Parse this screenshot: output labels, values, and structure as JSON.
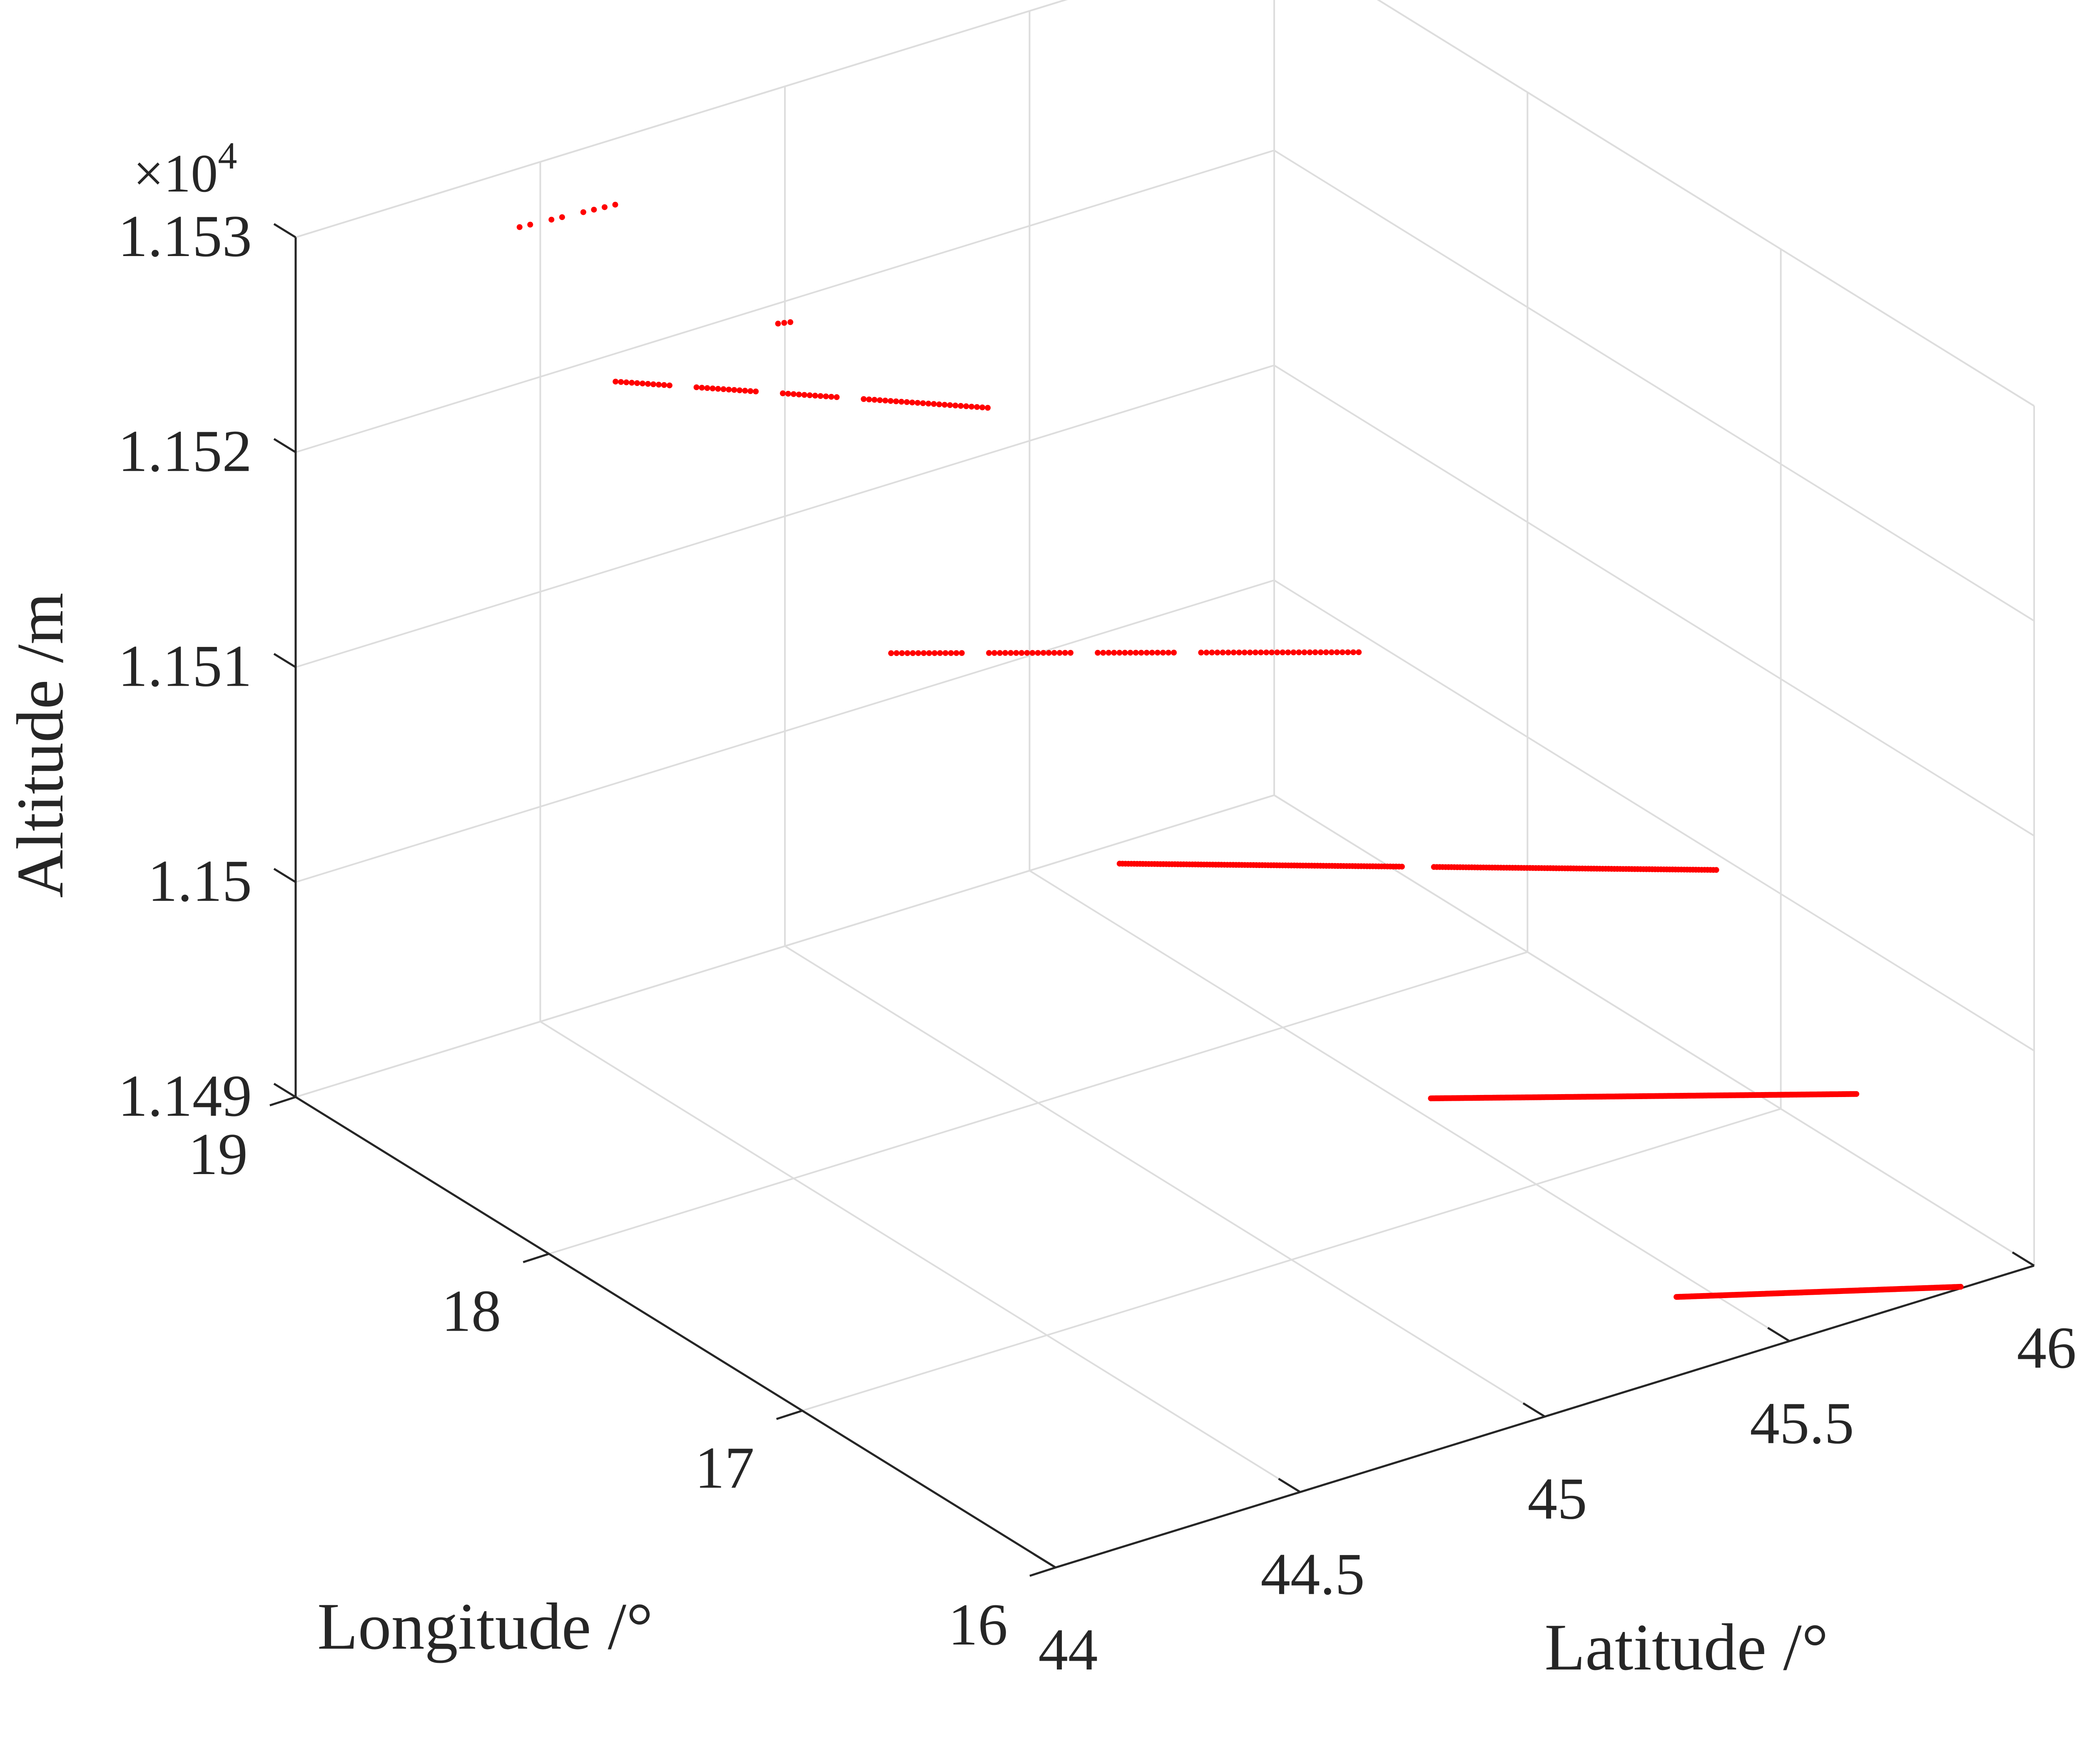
{
  "chart_data": {
    "type": "scatter",
    "view": "3d",
    "x_axis": {
      "label": "Latitude /°",
      "range": [
        44,
        46
      ],
      "ticks": [
        44,
        44.5,
        45,
        45.5,
        46
      ],
      "tick_labels": [
        "44",
        "44.5",
        "45",
        "45.5",
        "46"
      ]
    },
    "y_axis": {
      "label": "Longitude /°",
      "range": [
        16,
        19
      ],
      "ticks": [
        16,
        17,
        18,
        19
      ],
      "tick_labels": [
        "16",
        "17",
        "18",
        "19"
      ]
    },
    "z_axis": {
      "label": "Altitude /m",
      "range": [
        1.149,
        1.153
      ],
      "ticks": [
        1.149,
        1.15,
        1.151,
        1.152,
        1.153
      ],
      "tick_labels": [
        "1.149",
        "1.15",
        "1.151",
        "1.152",
        "1.153"
      ],
      "exponent_prefix": "×10",
      "exponent_power": "4"
    },
    "grid": true,
    "marker_color": "#ff0000",
    "series": [
      {
        "segments": [
          {
            "start": [
              44.38,
              18.85,
              1.15289
            ],
            "end": [
              44.56,
              18.82,
              1.15289
            ],
            "style": "sparse"
          },
          {
            "start": [
              44.52,
              18.1,
              1.15289
            ],
            "end": [
              44.54,
              18.09,
              1.15289
            ],
            "style": "sparse"
          },
          {
            "start": [
              44.54,
              18.78,
              1.15211
            ],
            "end": [
              44.99,
              18.18,
              1.15211
            ],
            "style": "dotted"
          },
          {
            "start": [
              44.72,
              18.04,
              1.15126
            ],
            "end": [
              45.36,
              17.43,
              1.15126
            ],
            "style": "dotted"
          },
          {
            "start": [
              44.98,
              17.64,
              1.15039
            ],
            "end": [
              45.78,
              16.83,
              1.15039
            ],
            "style": "dense"
          },
          {
            "start": [
              45.29,
              17.01,
              1.14954
            ],
            "end": [
              45.88,
              16.47,
              1.14954
            ],
            "style": "solid"
          },
          {
            "start": [
              45.59,
              16.62,
              1.14869
            ],
            "end": [
              46.0,
              16.29,
              1.14869
            ],
            "style": "solid"
          }
        ]
      }
    ]
  }
}
